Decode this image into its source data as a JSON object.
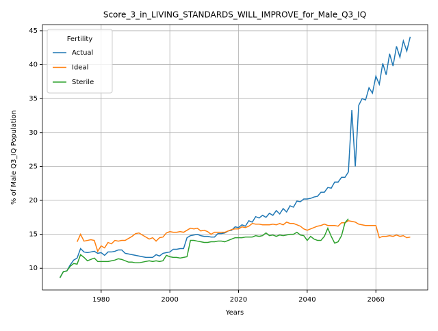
{
  "chart_data": {
    "type": "line",
    "title": "Score_3_in_LIVING_STANDARDS_WILL_IMPROVE_for_Male_Q3_IQ",
    "xlabel": "Years",
    "ylabel": "% of Male Q3_IQ Population",
    "legend_title": "Fertility",
    "legend": "upper left",
    "grid": true,
    "x": [
      1968,
      1969,
      1970,
      1971,
      1972,
      1973,
      1974,
      1975,
      1976,
      1977,
      1978,
      1979,
      1980,
      1981,
      1982,
      1983,
      1984,
      1985,
      1986,
      1987,
      1988,
      1989,
      1990,
      1991,
      1992,
      1993,
      1994,
      1995,
      1996,
      1997,
      1998,
      1999,
      2000,
      2001,
      2002,
      2003,
      2004,
      2005,
      2006,
      2007,
      2008,
      2009,
      2010,
      2011,
      2012,
      2013,
      2014,
      2015,
      2016,
      2017,
      2018,
      2019,
      2020,
      2021,
      2022,
      2023,
      2024,
      2025,
      2026,
      2027,
      2028,
      2029,
      2030,
      2031,
      2032,
      2033,
      2034,
      2035,
      2036,
      2037,
      2038,
      2039,
      2040,
      2041,
      2042,
      2043,
      2044,
      2045,
      2046,
      2047,
      2048,
      2049,
      2050,
      2051,
      2052,
      2053,
      2054,
      2055,
      2056,
      2057,
      2058,
      2059,
      2060,
      2061,
      2062,
      2063,
      2064,
      2065,
      2066,
      2067,
      2068,
      2069,
      2070
    ],
    "series": [
      {
        "name": "Actual",
        "color": "#1f77b4",
        "values": [
          8.6,
          9.5,
          9.6,
          10.5,
          11.2,
          11.5,
          12.9,
          12.4,
          12.3,
          12.4,
          12.5,
          12.2,
          12.3,
          11.9,
          12.4,
          12.4,
          12.5,
          12.7,
          12.7,
          12.2,
          12.1,
          12.0,
          11.9,
          11.8,
          11.7,
          11.6,
          11.6,
          11.6,
          12.0,
          11.8,
          12.2,
          12.3,
          12.4,
          12.8,
          12.8,
          12.9,
          12.9,
          14.5,
          14.8,
          14.9,
          15.0,
          14.8,
          14.7,
          14.7,
          14.6,
          14.6,
          15.1,
          15.1,
          15.2,
          15.5,
          15.6,
          16.1,
          16.0,
          16.4,
          16.2,
          17.0,
          16.8,
          17.6,
          17.4,
          17.8,
          17.5,
          18.1,
          17.8,
          18.5,
          18.0,
          18.8,
          18.3,
          19.2,
          19.0,
          19.9,
          19.8,
          20.2,
          20.2,
          20.3,
          20.5,
          20.6,
          21.2,
          21.2,
          21.9,
          21.8,
          22.7,
          22.7,
          23.4,
          23.4,
          24.2,
          33.3,
          25.0,
          34.0,
          35.0,
          34.8,
          36.6,
          35.8,
          38.3,
          37.1,
          40.2,
          38.5,
          41.6,
          39.8,
          42.7,
          41.1,
          43.5,
          42.0,
          44.1
        ]
      },
      {
        "name": "Ideal",
        "color": "#ff7f0e",
        "values": [
          null,
          null,
          null,
          null,
          null,
          13.9,
          15.0,
          14.0,
          14.1,
          14.2,
          14.1,
          12.5,
          13.3,
          13.0,
          13.8,
          13.6,
          14.1,
          14.0,
          14.1,
          14.1,
          14.4,
          14.7,
          15.1,
          15.2,
          14.9,
          14.6,
          14.3,
          14.5,
          14.0,
          14.5,
          14.6,
          15.2,
          15.4,
          15.3,
          15.3,
          15.4,
          15.3,
          15.6,
          15.9,
          15.8,
          15.9,
          15.5,
          15.6,
          15.4,
          15.0,
          15.3,
          15.3,
          15.3,
          15.3,
          15.5,
          15.7,
          15.8,
          15.8,
          16.1,
          16.0,
          16.2,
          16.6,
          16.5,
          16.5,
          16.4,
          16.4,
          16.4,
          16.5,
          16.4,
          16.6,
          16.4,
          16.8,
          16.6,
          16.6,
          16.4,
          16.2,
          15.8,
          15.6,
          15.8,
          16.0,
          16.2,
          16.3,
          16.5,
          16.3,
          16.3,
          16.3,
          16.2,
          16.7,
          16.7,
          17.0,
          16.9,
          16.8,
          16.5,
          16.4,
          16.3,
          16.3,
          16.3,
          16.3,
          14.5,
          14.7,
          14.7,
          14.8,
          14.7,
          14.9,
          14.7,
          14.8,
          14.5,
          14.6
        ]
      },
      {
        "name": "Sterile",
        "color": "#2ca02c",
        "values": [
          8.6,
          9.5,
          9.6,
          10.3,
          10.7,
          10.6,
          12.0,
          11.6,
          11.1,
          11.3,
          11.5,
          11.0,
          11.0,
          11.0,
          11.0,
          11.1,
          11.2,
          11.4,
          11.3,
          11.1,
          10.9,
          10.9,
          10.8,
          10.8,
          10.9,
          11.0,
          11.1,
          11.0,
          11.1,
          11.0,
          11.1,
          11.9,
          11.7,
          11.6,
          11.6,
          11.5,
          11.6,
          11.7,
          14.1,
          14.1,
          14.0,
          13.9,
          13.8,
          13.8,
          13.9,
          13.9,
          14.0,
          14.0,
          13.9,
          14.1,
          14.3,
          14.5,
          14.5,
          14.5,
          14.6,
          14.6,
          14.6,
          14.8,
          14.7,
          14.8,
          15.2,
          14.8,
          14.9,
          14.7,
          14.9,
          14.8,
          14.9,
          15.0,
          15.0,
          15.3,
          14.9,
          14.8,
          14.1,
          14.7,
          14.3,
          14.1,
          14.1,
          14.7,
          15.9,
          14.7,
          13.7,
          13.9,
          14.8,
          16.7,
          17.3,
          null,
          null,
          null,
          null,
          null,
          null,
          null,
          null,
          null,
          null,
          null,
          null,
          null,
          null,
          null,
          null,
          null,
          null
        ]
      }
    ],
    "xlim": [
      1962.9,
      2075.1
    ],
    "xticks": [
      1980,
      2000,
      2020,
      2040,
      2060
    ],
    "ylim": [
      6.8,
      45.9
    ],
    "yticks": [
      10,
      15,
      20,
      25,
      30,
      35,
      40,
      45
    ]
  }
}
